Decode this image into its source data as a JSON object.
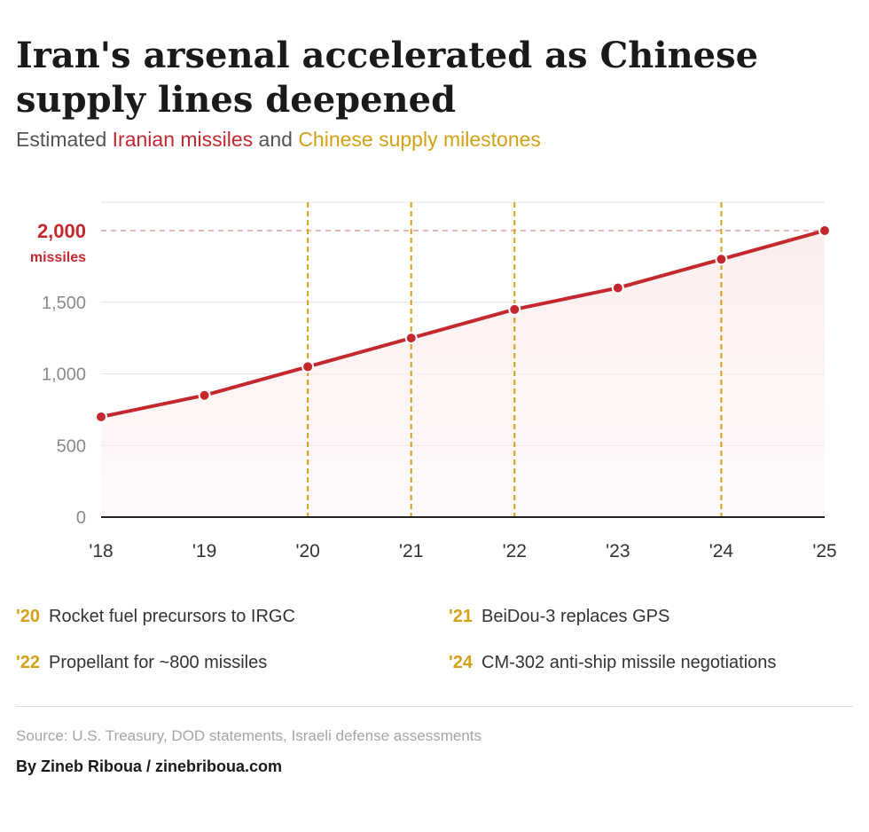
{
  "title": "Iran's arsenal accelerated as Chinese supply lines deepened",
  "subtitle": {
    "prefix": "Estimated ",
    "series_name": "Iranian missiles",
    "middle": " and ",
    "milestone_name": "Chinese supply milestones"
  },
  "colors": {
    "line": "#c4282e",
    "milestone": "#d4a017",
    "fill": "#fdeeee",
    "grid": "#e3e3e3",
    "axis_text": "#8a8a8a",
    "reference": "#e8a0a0"
  },
  "chart_data": {
    "type": "line",
    "x": [
      "'18",
      "'19",
      "'20",
      "'21",
      "'22",
      "'23",
      "'24",
      "'25"
    ],
    "series": [
      {
        "name": "Iranian missiles",
        "values": [
          700,
          850,
          1050,
          1250,
          1450,
          1600,
          1800,
          2000
        ]
      }
    ],
    "ylim": [
      0,
      2000
    ],
    "yticks": [
      "0",
      "500",
      "1,000",
      "1,500"
    ],
    "ytick_values": [
      0,
      500,
      1000,
      1500
    ],
    "top_label": {
      "value": 2000,
      "number": "2,000",
      "unit": "missiles"
    },
    "milestone_years": [
      "'20",
      "'21",
      "'22",
      "'24"
    ],
    "grid": true
  },
  "milestones": [
    {
      "year": "'20",
      "text": "Rocket fuel precursors to IRGC"
    },
    {
      "year": "'21",
      "text": "BeiDou-3 replaces GPS"
    },
    {
      "year": "'22",
      "text": "Propellant for ~800 missiles"
    },
    {
      "year": "'24",
      "text": "CM-302 anti-ship missile negotiations"
    }
  ],
  "source": "Source: U.S. Treasury, DOD statements, Israeli defense assessments",
  "byline": "By Zineb Riboua / zinebriboua.com"
}
